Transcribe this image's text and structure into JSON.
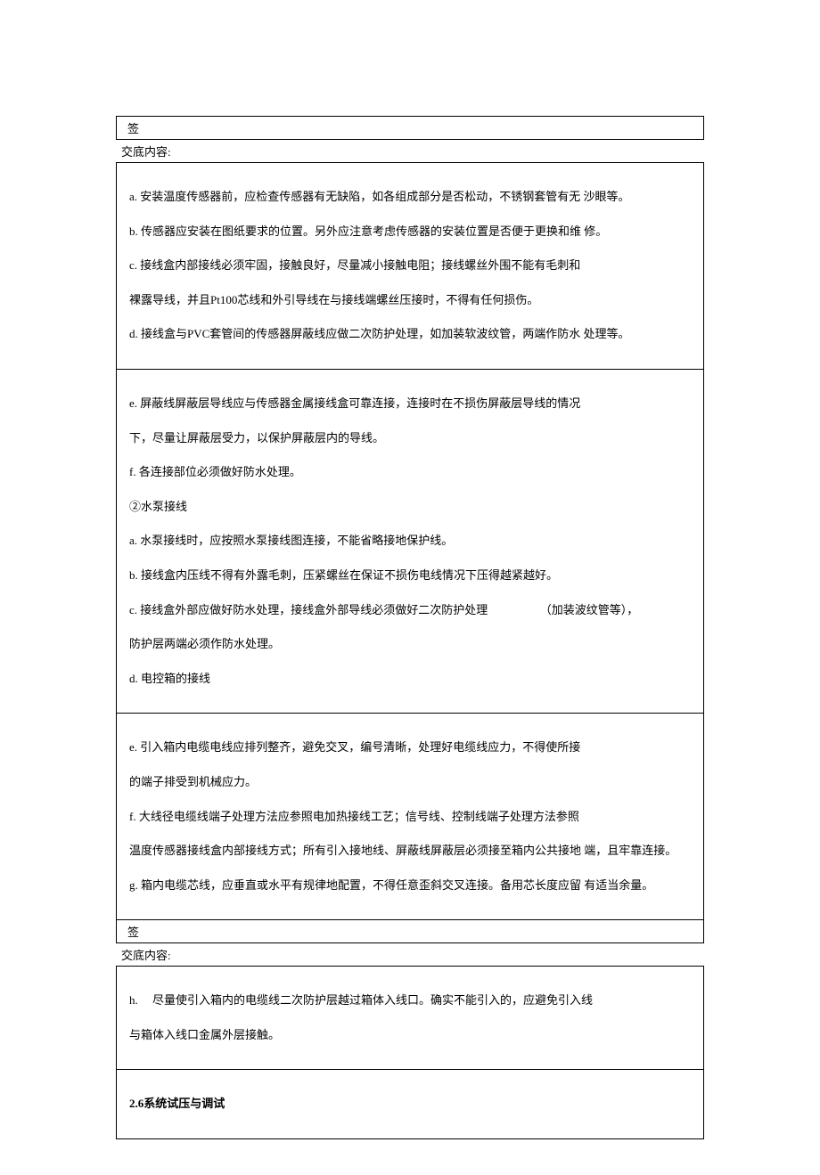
{
  "sign_label": "签",
  "section_label": "交底内容:",
  "box1": {
    "lines": [
      "a. 安装温度传感器前，应检查传感器有无缺陷，如各组成部分是否松动，不锈钢套管有无 沙眼等。",
      "b. 传感器应安装在图纸要求的位置。另外应注意考虑传感器的安装位置是否便于更换和维 修。",
      "c. 接线盒内部接线必须牢固，接触良好，尽量减小接触电阻；接线螺丝外围不能有毛刺和",
      "裸露导线，并且Pt100芯线和外引导线在与接线端螺丝压接时，不得有任何损伤。",
      "d. 接线盒与PVC套管间的传感器屏蔽线应做二次防护处理，如加装软波纹管，两端作防水 处理等。"
    ]
  },
  "box2": {
    "lines": [
      "e. 屏蔽线屏蔽层导线应与传感器金属接线盒可靠连接，连接时在不损伤屏蔽层导线的情况",
      "下，尽量让屏蔽层受力，以保护屏蔽层内的导线。",
      "f. 各连接部位必须做好防水处理。",
      "②水泵接线",
      "a. 水泵接线时，应按照水泵接线图连接，不能省略接地保护线。",
      "b. 接线盒内压线不得有外露毛刺，压紧螺丝在保证不损伤电线情况下压得越紧越好。",
      "c. 接线盒外部应做好防水处理，接线盒外部导线必须做好二次防护处理　　　　　（加装波纹管等），",
      "防护层两端必须作防水处理。",
      "d. 电控箱的接线"
    ]
  },
  "box3": {
    "lines": [
      "e. 引入箱内电缆电线应排列整齐，避免交叉，编号清晰，处理好电缆线应力，不得使所接",
      "的端子排受到机械应力。",
      "f. 大线径电缆线端子处理方法应参照电加热接线工艺；信号线、控制线端子处理方法参照",
      "温度传感器接线盒内部接线方式；所有引入接地线、屏蔽线屏蔽层必须接至箱内公共接地 端，且牢靠连接。",
      "g. 箱内电缆芯线，应垂直或水平有规律地配置，不得任意歪斜交叉连接。备用芯长度应留 有适当余量。"
    ]
  },
  "box4": {
    "lines": [
      "h.　 尽量使引入箱内的电缆线二次防护层越过箱体入线口。确实不能引入的，应避免引入线",
      "与箱体入线口金属外层接触。"
    ]
  },
  "box5": {
    "heading": "2.6系统试压与调试"
  }
}
